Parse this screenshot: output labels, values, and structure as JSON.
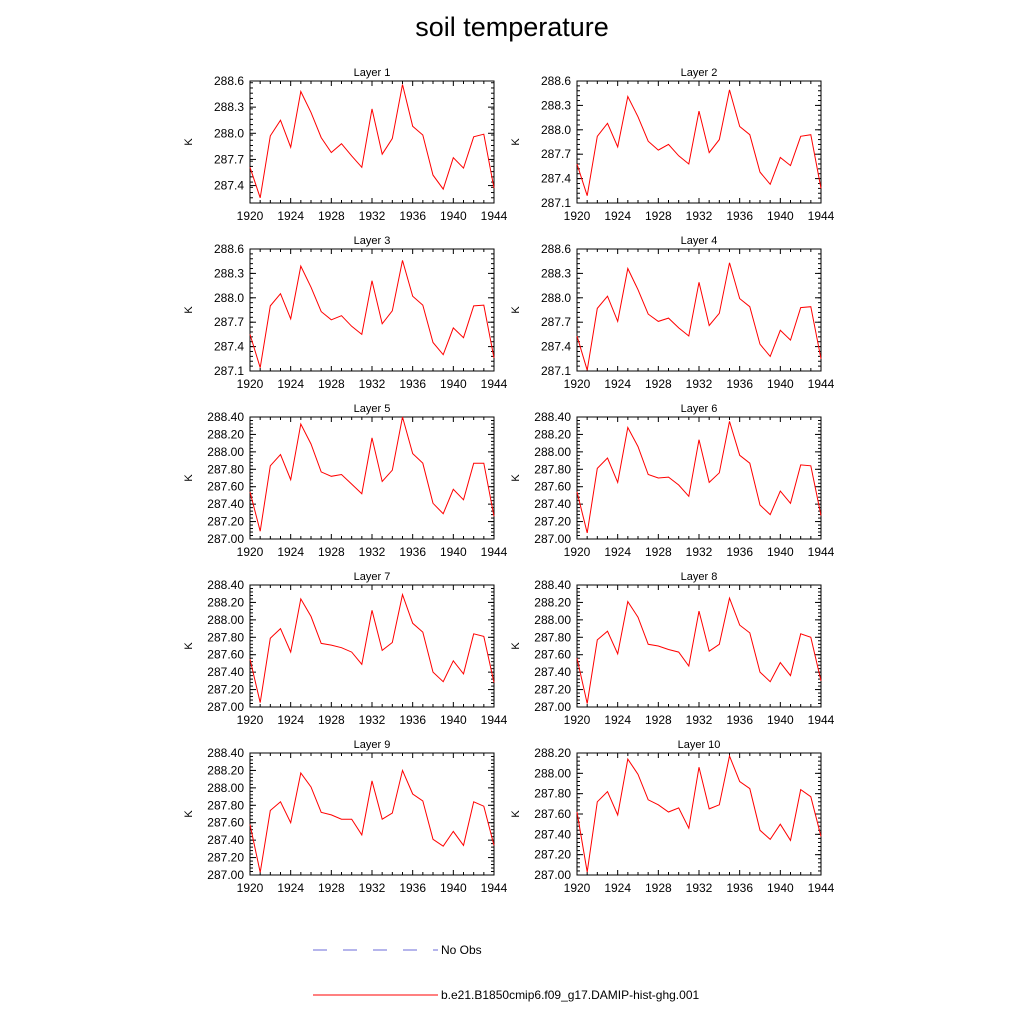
{
  "title": "soil temperature",
  "legend": [
    {
      "label": "No Obs",
      "style": "dashed",
      "color": "#6b6bd8"
    },
    {
      "label": "b.e21.B1850cmip6.f09_g17.DAMIP-hist-ghg.001",
      "style": "solid",
      "color": "#ff0000"
    }
  ],
  "chart_data": [
    {
      "type": "line",
      "title": "Layer 1",
      "ylabel": "K",
      "xlim": [
        1920,
        1944
      ],
      "ylim": [
        287.2,
        288.6
      ],
      "yticks": [
        "287.4",
        "287.7",
        "288.0",
        "288.3",
        "288.6"
      ],
      "xticks": [
        "1920",
        "1924",
        "1928",
        "1932",
        "1936",
        "1940",
        "1944"
      ],
      "x": [
        1920,
        1921,
        1922,
        1923,
        1924,
        1925,
        1926,
        1927,
        1928,
        1929,
        1930,
        1931,
        1932,
        1933,
        1934,
        1935,
        1936,
        1937,
        1938,
        1939,
        1940,
        1941,
        1942,
        1943,
        1944
      ],
      "series": [
        {
          "values": [
            287.61,
            287.26,
            287.97,
            288.15,
            287.84,
            288.48,
            288.24,
            287.95,
            287.78,
            287.88,
            287.74,
            287.61,
            288.28,
            287.76,
            287.94,
            288.56,
            288.08,
            287.98,
            287.52,
            287.36,
            287.72,
            287.6,
            287.96,
            287.99,
            287.37
          ]
        }
      ]
    },
    {
      "type": "line",
      "title": "Layer 2",
      "ylabel": "K",
      "xlim": [
        1920,
        1944
      ],
      "ylim": [
        287.1,
        288.6
      ],
      "yticks": [
        "287.1",
        "287.4",
        "287.7",
        "288.0",
        "288.3",
        "288.6"
      ],
      "xticks": [
        "1920",
        "1924",
        "1928",
        "1932",
        "1936",
        "1940",
        "1944"
      ],
      "x": [
        1920,
        1921,
        1922,
        1923,
        1924,
        1925,
        1926,
        1927,
        1928,
        1929,
        1930,
        1931,
        1932,
        1933,
        1934,
        1935,
        1936,
        1937,
        1938,
        1939,
        1940,
        1941,
        1942,
        1943,
        1944
      ],
      "series": [
        {
          "values": [
            287.58,
            287.19,
            287.92,
            288.08,
            287.79,
            288.41,
            288.16,
            287.86,
            287.75,
            287.82,
            287.68,
            287.58,
            288.23,
            287.72,
            287.88,
            288.49,
            288.04,
            287.94,
            287.48,
            287.33,
            287.66,
            287.56,
            287.92,
            287.94,
            287.28
          ]
        }
      ]
    },
    {
      "type": "line",
      "title": "Layer 3",
      "ylabel": "K",
      "xlim": [
        1920,
        1944
      ],
      "ylim": [
        287.1,
        288.6
      ],
      "yticks": [
        "287.1",
        "287.4",
        "287.7",
        "288.0",
        "288.3",
        "288.6"
      ],
      "xticks": [
        "1920",
        "1924",
        "1928",
        "1932",
        "1936",
        "1940",
        "1944"
      ],
      "x": [
        1920,
        1921,
        1922,
        1923,
        1924,
        1925,
        1926,
        1927,
        1928,
        1929,
        1930,
        1931,
        1932,
        1933,
        1934,
        1935,
        1936,
        1937,
        1938,
        1939,
        1940,
        1941,
        1942,
        1943,
        1944
      ],
      "series": [
        {
          "values": [
            287.55,
            287.14,
            287.9,
            288.05,
            287.74,
            288.39,
            288.13,
            287.83,
            287.73,
            287.78,
            287.65,
            287.55,
            288.21,
            287.68,
            287.84,
            288.46,
            288.02,
            287.91,
            287.45,
            287.3,
            287.63,
            287.51,
            287.9,
            287.91,
            287.26
          ]
        }
      ]
    },
    {
      "type": "line",
      "title": "Layer 4",
      "ylabel": "K",
      "xlim": [
        1920,
        1944
      ],
      "ylim": [
        287.1,
        288.6
      ],
      "yticks": [
        "287.1",
        "287.4",
        "287.7",
        "288.0",
        "288.3",
        "288.6"
      ],
      "xticks": [
        "1920",
        "1924",
        "1928",
        "1932",
        "1936",
        "1940",
        "1944"
      ],
      "x": [
        1920,
        1921,
        1922,
        1923,
        1924,
        1925,
        1926,
        1927,
        1928,
        1929,
        1930,
        1931,
        1932,
        1933,
        1934,
        1935,
        1936,
        1937,
        1938,
        1939,
        1940,
        1941,
        1942,
        1943,
        1944
      ],
      "series": [
        {
          "values": [
            287.53,
            287.11,
            287.87,
            288.02,
            287.71,
            288.36,
            288.1,
            287.8,
            287.71,
            287.75,
            287.63,
            287.53,
            288.19,
            287.66,
            287.81,
            288.43,
            287.99,
            287.89,
            287.43,
            287.28,
            287.6,
            287.48,
            287.88,
            287.89,
            287.25
          ]
        }
      ]
    },
    {
      "type": "line",
      "title": "Layer 5",
      "ylabel": "K",
      "xlim": [
        1920,
        1944
      ],
      "ylim": [
        287.0,
        288.4
      ],
      "yticks": [
        "287.00",
        "287.20",
        "287.40",
        "287.60",
        "287.80",
        "288.00",
        "288.20",
        "288.40"
      ],
      "xticks": [
        "1920",
        "1924",
        "1928",
        "1932",
        "1936",
        "1940",
        "1944"
      ],
      "x": [
        1920,
        1921,
        1922,
        1923,
        1924,
        1925,
        1926,
        1927,
        1928,
        1929,
        1930,
        1931,
        1932,
        1933,
        1934,
        1935,
        1936,
        1937,
        1938,
        1939,
        1940,
        1941,
        1942,
        1943,
        1944
      ],
      "series": [
        {
          "values": [
            287.54,
            287.09,
            287.84,
            287.97,
            287.68,
            288.32,
            288.09,
            287.77,
            287.72,
            287.74,
            287.63,
            287.52,
            288.16,
            287.66,
            287.79,
            288.4,
            287.98,
            287.87,
            287.41,
            287.29,
            287.57,
            287.45,
            287.87,
            287.87,
            287.26
          ]
        }
      ]
    },
    {
      "type": "line",
      "title": "Layer 6",
      "ylabel": "K",
      "xlim": [
        1920,
        1944
      ],
      "ylim": [
        287.0,
        288.4
      ],
      "yticks": [
        "287.00",
        "287.20",
        "287.40",
        "287.60",
        "287.80",
        "288.00",
        "288.20",
        "288.40"
      ],
      "xticks": [
        "1920",
        "1924",
        "1928",
        "1932",
        "1936",
        "1940",
        "1944"
      ],
      "x": [
        1920,
        1921,
        1922,
        1923,
        1924,
        1925,
        1926,
        1927,
        1928,
        1929,
        1930,
        1931,
        1932,
        1933,
        1934,
        1935,
        1936,
        1937,
        1938,
        1939,
        1940,
        1941,
        1942,
        1943,
        1944
      ],
      "series": [
        {
          "values": [
            287.54,
            287.07,
            287.81,
            287.93,
            287.65,
            288.28,
            288.06,
            287.74,
            287.7,
            287.71,
            287.62,
            287.49,
            288.14,
            287.65,
            287.76,
            288.35,
            287.96,
            287.87,
            287.39,
            287.28,
            287.55,
            287.41,
            287.85,
            287.84,
            287.27
          ]
        }
      ]
    },
    {
      "type": "line",
      "title": "Layer 7",
      "ylabel": "K",
      "xlim": [
        1920,
        1944
      ],
      "ylim": [
        287.0,
        288.4
      ],
      "yticks": [
        "287.00",
        "287.20",
        "287.40",
        "287.60",
        "287.80",
        "288.00",
        "288.20",
        "288.40"
      ],
      "xticks": [
        "1920",
        "1924",
        "1928",
        "1932",
        "1936",
        "1940",
        "1944"
      ],
      "x": [
        1920,
        1921,
        1922,
        1923,
        1924,
        1925,
        1926,
        1927,
        1928,
        1929,
        1930,
        1931,
        1932,
        1933,
        1934,
        1935,
        1936,
        1937,
        1938,
        1939,
        1940,
        1941,
        1942,
        1943,
        1944
      ],
      "series": [
        {
          "values": [
            287.55,
            287.05,
            287.79,
            287.9,
            287.63,
            288.24,
            288.04,
            287.73,
            287.71,
            287.68,
            287.63,
            287.49,
            288.11,
            287.65,
            287.74,
            288.29,
            287.96,
            287.86,
            287.4,
            287.29,
            287.53,
            287.38,
            287.84,
            287.81,
            287.28
          ]
        }
      ]
    },
    {
      "type": "line",
      "title": "Layer 8",
      "ylabel": "K",
      "xlim": [
        1920,
        1944
      ],
      "ylim": [
        287.0,
        288.4
      ],
      "yticks": [
        "287.00",
        "287.20",
        "287.40",
        "287.60",
        "287.80",
        "288.00",
        "288.20",
        "288.40"
      ],
      "xticks": [
        "1920",
        "1924",
        "1928",
        "1932",
        "1936",
        "1940",
        "1944"
      ],
      "x": [
        1920,
        1921,
        1922,
        1923,
        1924,
        1925,
        1926,
        1927,
        1928,
        1929,
        1930,
        1931,
        1932,
        1933,
        1934,
        1935,
        1936,
        1937,
        1938,
        1939,
        1940,
        1941,
        1942,
        1943,
        1944
      ],
      "series": [
        {
          "values": [
            287.56,
            287.04,
            287.77,
            287.87,
            287.61,
            288.21,
            288.03,
            287.72,
            287.7,
            287.66,
            287.63,
            287.47,
            288.1,
            287.64,
            287.72,
            288.25,
            287.94,
            287.85,
            287.4,
            287.29,
            287.51,
            287.36,
            287.84,
            287.8,
            287.3
          ]
        }
      ]
    },
    {
      "type": "line",
      "title": "Layer 9",
      "ylabel": "K",
      "xlim": [
        1920,
        1944
      ],
      "ylim": [
        287.0,
        288.4
      ],
      "yticks": [
        "287.00",
        "287.20",
        "287.40",
        "287.60",
        "287.80",
        "288.00",
        "288.20",
        "288.40"
      ],
      "xticks": [
        "1920",
        "1924",
        "1928",
        "1932",
        "1936",
        "1940",
        "1944"
      ],
      "x": [
        1920,
        1921,
        1922,
        1923,
        1924,
        1925,
        1926,
        1927,
        1928,
        1929,
        1930,
        1931,
        1932,
        1933,
        1934,
        1935,
        1936,
        1937,
        1938,
        1939,
        1940,
        1941,
        1942,
        1943,
        1944
      ],
      "series": [
        {
          "values": [
            287.58,
            287.03,
            287.74,
            287.84,
            287.6,
            288.17,
            288.01,
            287.72,
            287.69,
            287.64,
            287.64,
            287.46,
            288.08,
            287.64,
            287.71,
            288.2,
            287.93,
            287.85,
            287.41,
            287.33,
            287.5,
            287.34,
            287.84,
            287.79,
            287.34
          ]
        }
      ]
    },
    {
      "type": "line",
      "title": "Layer 10",
      "ylabel": "K",
      "xlim": [
        1920,
        1944
      ],
      "ylim": [
        287.0,
        288.2
      ],
      "yticks": [
        "287.00",
        "287.20",
        "287.40",
        "287.60",
        "287.80",
        "288.00",
        "288.20"
      ],
      "xticks": [
        "1920",
        "1924",
        "1928",
        "1932",
        "1936",
        "1940",
        "1944"
      ],
      "x": [
        1920,
        1921,
        1922,
        1923,
        1924,
        1925,
        1926,
        1927,
        1928,
        1929,
        1930,
        1931,
        1932,
        1933,
        1934,
        1935,
        1936,
        1937,
        1938,
        1939,
        1940,
        1941,
        1942,
        1943,
        1944
      ],
      "series": [
        {
          "values": [
            287.62,
            287.03,
            287.72,
            287.82,
            287.59,
            288.14,
            287.99,
            287.74,
            287.69,
            287.62,
            287.66,
            287.46,
            288.06,
            287.65,
            287.69,
            288.17,
            287.92,
            287.85,
            287.44,
            287.35,
            287.5,
            287.34,
            287.84,
            287.77,
            287.38
          ]
        }
      ]
    }
  ]
}
